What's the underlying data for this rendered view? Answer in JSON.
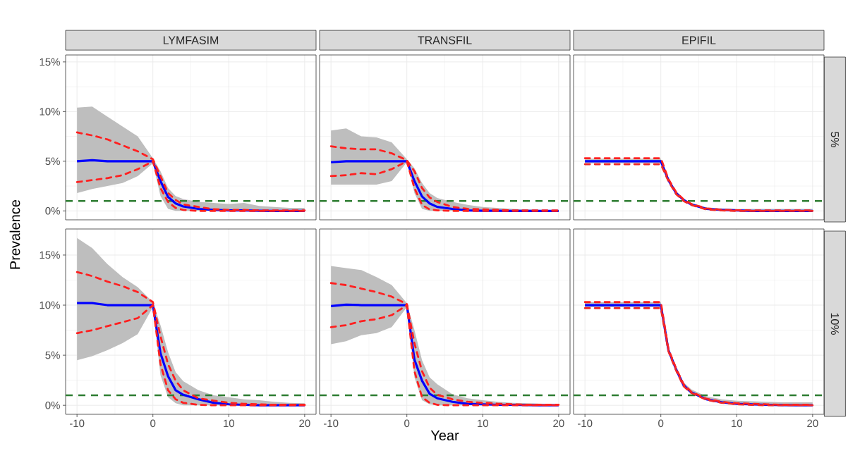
{
  "chart_data": [
    {
      "type": "line",
      "title": "LYMFASIM",
      "x": [
        -10,
        -8,
        -6,
        -4,
        -2,
        0,
        1,
        2,
        3,
        4,
        6,
        8,
        10,
        12,
        14,
        16,
        18,
        20
      ],
      "xlim": [
        -11.5,
        21.5
      ],
      "ylim": [
        -0.9,
        15.7
      ],
      "xticks": [
        -10,
        0,
        10,
        20
      ],
      "yticks": [
        {
          "value": 0,
          "label": "0%"
        },
        {
          "value": 5,
          "label": "5%"
        },
        {
          "value": 10,
          "label": "10%"
        },
        {
          "value": 15,
          "label": "15%"
        }
      ],
      "grid": true,
      "tick_labels": "y",
      "ylabel": "Prevalence",
      "series": [
        {
          "color": "#0000ff",
          "line_style": "solid",
          "values": [
            5.0,
            5.1,
            5.0,
            5.0,
            5.0,
            5.0,
            3.0,
            1.4,
            0.75,
            0.45,
            0.2,
            0.1,
            0.05,
            0.05,
            0.02,
            0,
            0,
            0
          ],
          "lower": [
            1.8,
            2.2,
            2.5,
            2.8,
            3.5,
            4.8,
            1.5,
            0.2,
            0,
            0,
            0,
            0,
            0,
            0,
            0,
            0,
            0,
            0
          ],
          "upper": [
            10.4,
            10.5,
            9.5,
            8.5,
            7.5,
            5.3,
            4.0,
            2.3,
            1.5,
            1.2,
            0.9,
            0.8,
            0.7,
            0.8,
            0.5,
            0.4,
            0.3,
            0.3
          ]
        },
        {
          "color": "#ff2020",
          "line_style": "dashed",
          "values": [
            7.9,
            7.6,
            7.2,
            6.6,
            6.0,
            5.2,
            3.5,
            1.8,
            1.1,
            0.65,
            0.4,
            0.17,
            0.1,
            0.1,
            0.05,
            0.05,
            0.05,
            0.05
          ]
        },
        {
          "color": "#ff2020",
          "line_style": "dashed",
          "values": [
            2.9,
            3.1,
            3.3,
            3.6,
            4.2,
            5.0,
            2.3,
            0.9,
            0.3,
            0.1,
            0,
            0,
            0,
            0,
            0,
            0,
            0,
            0
          ]
        }
      ],
      "ref_lines": [
        {
          "axis": "y",
          "value": 1,
          "color": "#2e7d32",
          "line_style": "dashed"
        }
      ]
    },
    {
      "type": "line",
      "title": "TRANSFIL",
      "x": [
        -10,
        -8,
        -6,
        -4,
        -2,
        0,
        1,
        2,
        3,
        4,
        6,
        8,
        10,
        12,
        14,
        16,
        18,
        20
      ],
      "xlim": [
        -11.5,
        21.5
      ],
      "ylim": [
        -0.9,
        15.7
      ],
      "xticks": [
        -10,
        0,
        10,
        20
      ],
      "yticks": [
        0,
        5,
        10,
        15
      ],
      "grid": true,
      "tick_labels": false,
      "series": [
        {
          "color": "#0000ff",
          "line_style": "solid",
          "values": [
            4.9,
            5.0,
            5.0,
            5.0,
            5.0,
            5.0,
            3.0,
            1.45,
            0.75,
            0.4,
            0.2,
            0.05,
            0.02,
            0.02,
            0,
            0,
            0,
            0
          ],
          "lower": [
            2.65,
            2.65,
            2.65,
            2.65,
            3.0,
            4.9,
            1.8,
            0.2,
            0,
            0,
            0,
            0,
            0,
            0,
            0,
            0,
            0,
            0
          ],
          "upper": [
            8.1,
            8.3,
            7.5,
            7.4,
            6.9,
            5.2,
            4.3,
            2.8,
            1.8,
            1.3,
            0.9,
            0.6,
            0.4,
            0.3,
            0.2,
            0.15,
            0.1,
            0.1
          ]
        },
        {
          "color": "#ff2020",
          "line_style": "dashed",
          "values": [
            6.5,
            6.3,
            6.2,
            6.2,
            5.8,
            5.1,
            4.0,
            2.3,
            1.35,
            0.9,
            0.4,
            0.2,
            0.15,
            0.1,
            0.05,
            0.05,
            0.05,
            0.05
          ]
        },
        {
          "color": "#ff2020",
          "line_style": "dashed",
          "values": [
            3.5,
            3.6,
            3.8,
            3.7,
            4.2,
            5.0,
            2.3,
            0.6,
            0.15,
            0.05,
            0,
            0,
            0,
            0,
            0,
            0,
            0,
            0
          ]
        }
      ],
      "ref_lines": [
        {
          "axis": "y",
          "value": 1,
          "color": "#2e7d32",
          "line_style": "dashed"
        }
      ]
    },
    {
      "type": "line",
      "title": "EPIFIL",
      "y2label": "5%",
      "x": [
        -10,
        -8,
        -6,
        -4,
        -2,
        0,
        1,
        2,
        3,
        4,
        6,
        8,
        10,
        12,
        14,
        16,
        18,
        20
      ],
      "xlim": [
        -11.5,
        21.5
      ],
      "ylim": [
        -0.9,
        15.7
      ],
      "xticks": [
        -10,
        0,
        10,
        20
      ],
      "yticks": [
        0,
        5,
        10,
        15
      ],
      "grid": true,
      "tick_labels": false,
      "series": [
        {
          "color": "#0000ff",
          "line_style": "solid",
          "values": [
            5.0,
            5.0,
            5.0,
            5.0,
            5.0,
            5.0,
            3.1,
            1.8,
            1.1,
            0.65,
            0.2,
            0.1,
            0.05,
            0,
            0,
            0,
            0,
            0
          ],
          "lower": [
            4.8,
            4.8,
            4.8,
            4.8,
            4.8,
            4.8,
            3.0,
            1.7,
            1.0,
            0.6,
            0.15,
            0.05,
            0,
            0,
            0,
            0,
            0,
            0
          ],
          "upper": [
            5.25,
            5.25,
            5.25,
            5.25,
            5.25,
            5.25,
            3.3,
            2.0,
            1.25,
            0.8,
            0.35,
            0.25,
            0.2,
            0.2,
            0.2,
            0.2,
            0.2,
            0.2
          ]
        },
        {
          "color": "#ff2020",
          "line_style": "dashed",
          "values": [
            5.3,
            5.3,
            5.3,
            5.3,
            5.3,
            5.3,
            3.2,
            1.9,
            1.15,
            0.7,
            0.25,
            0.12,
            0.07,
            0.05,
            0.05,
            0.05,
            0.05,
            0.05
          ]
        },
        {
          "color": "#f02828",
          "line_style": "dashed",
          "values": [
            4.7,
            4.7,
            4.7,
            4.7,
            4.7,
            4.7,
            3.0,
            1.7,
            1.0,
            0.6,
            0.15,
            0.05,
            0,
            0,
            0,
            0,
            0,
            0
          ]
        }
      ],
      "ref_lines": [
        {
          "axis": "y",
          "value": 1,
          "color": "#2e7d32",
          "line_style": "dashed"
        }
      ]
    },
    {
      "type": "line",
      "x": [
        -10,
        -8,
        -6,
        -4,
        -2,
        0,
        1,
        2,
        3,
        4,
        6,
        8,
        10,
        12,
        14,
        16,
        18,
        20
      ],
      "xlim": [
        -11.5,
        21.5
      ],
      "ylim": [
        -0.9,
        17.6
      ],
      "xticks": [
        -10,
        0,
        10,
        20
      ],
      "yticks": [
        {
          "value": 0,
          "label": "0%"
        },
        {
          "value": 5,
          "label": "5%"
        },
        {
          "value": 10,
          "label": "10%"
        },
        {
          "value": 15,
          "label": "15%"
        }
      ],
      "grid": true,
      "series": [
        {
          "color": "#0000ff",
          "line_style": "solid",
          "values": [
            10.2,
            10.2,
            10.0,
            10.0,
            10.0,
            10.0,
            5.2,
            2.9,
            1.5,
            1.05,
            0.6,
            0.25,
            0.1,
            0.05,
            0,
            0,
            0,
            0
          ],
          "lower": [
            4.5,
            4.9,
            5.5,
            6.2,
            7.1,
            9.8,
            3.0,
            0.8,
            0.2,
            0,
            0,
            0,
            0,
            0,
            0,
            0,
            0,
            0
          ],
          "upper": [
            16.7,
            15.7,
            14.1,
            12.8,
            11.8,
            10.3,
            8.0,
            5.3,
            3.3,
            2.4,
            1.5,
            1.0,
            0.8,
            0.6,
            0.5,
            0.35,
            0.25,
            0.2
          ]
        },
        {
          "color": "#ff2020",
          "line_style": "dashed",
          "values": [
            13.3,
            12.9,
            12.35,
            11.9,
            11.3,
            10.3,
            6.9,
            4.1,
            2.45,
            1.5,
            0.7,
            0.47,
            0.25,
            0.15,
            0.1,
            0.05,
            0.05,
            0.05
          ]
        },
        {
          "color": "#ff2020",
          "line_style": "dashed",
          "values": [
            7.2,
            7.5,
            7.9,
            8.3,
            8.7,
            10.0,
            4.1,
            1.5,
            0.6,
            0.25,
            0.05,
            0,
            0,
            0,
            0,
            0,
            0,
            0
          ]
        }
      ],
      "ref_lines": [
        {
          "axis": "y",
          "value": 1,
          "color": "#2e7d32",
          "line_style": "dashed"
        }
      ]
    },
    {
      "type": "line",
      "xlabel": "Year",
      "x": [
        -10,
        -8,
        -6,
        -4,
        -2,
        0,
        1,
        2,
        3,
        4,
        6,
        8,
        10,
        12,
        14,
        16,
        18,
        20
      ],
      "xlim": [
        -11.5,
        21.5
      ],
      "ylim": [
        -0.9,
        17.6
      ],
      "xticks": [
        -10,
        0,
        10,
        20
      ],
      "yticks": [
        0,
        5,
        10,
        15
      ],
      "grid": true,
      "tick_labels": "x",
      "series": [
        {
          "color": "#0000ff",
          "line_style": "solid",
          "values": [
            9.9,
            10.05,
            10.0,
            10.0,
            10.0,
            10.0,
            4.55,
            2.45,
            1.15,
            0.7,
            0.35,
            0.15,
            0.1,
            0.05,
            0.05,
            0.02,
            0,
            0
          ],
          "lower": [
            6.1,
            6.4,
            7.0,
            7.2,
            7.8,
            9.8,
            2.8,
            0.5,
            0.1,
            0,
            0,
            0,
            0,
            0,
            0,
            0,
            0,
            0
          ],
          "upper": [
            13.9,
            13.7,
            13.5,
            12.8,
            12.0,
            10.2,
            7.5,
            4.5,
            2.8,
            2.1,
            1.1,
            0.7,
            0.5,
            0.35,
            0.25,
            0.2,
            0.15,
            0.1
          ]
        },
        {
          "color": "#ff2020",
          "line_style": "dashed",
          "values": [
            12.2,
            12.0,
            11.65,
            11.3,
            10.85,
            10.1,
            6.2,
            3.4,
            1.75,
            1.05,
            0.6,
            0.35,
            0.25,
            0.15,
            0.1,
            0.05,
            0.05,
            0.05
          ]
        },
        {
          "color": "#ff2020",
          "line_style": "dashed",
          "values": [
            7.8,
            8.0,
            8.4,
            8.6,
            9.0,
            10.0,
            3.4,
            0.8,
            0.25,
            0.05,
            0,
            0,
            0,
            0,
            0,
            0,
            0,
            0
          ]
        }
      ],
      "ref_lines": [
        {
          "axis": "y",
          "value": 1,
          "color": "#2e7d32",
          "line_style": "dashed"
        }
      ]
    },
    {
      "type": "line",
      "y2label": "10%",
      "x": [
        -10,
        -8,
        -6,
        -4,
        -2,
        0,
        1,
        2,
        3,
        4,
        6,
        8,
        10,
        12,
        14,
        16,
        18,
        20
      ],
      "xlim": [
        -11.5,
        21.5
      ],
      "ylim": [
        -0.9,
        17.6
      ],
      "xticks": [
        -10,
        0,
        10,
        20
      ],
      "yticks": [
        0,
        5,
        10,
        15
      ],
      "grid": true,
      "tick_labels": "x",
      "series": [
        {
          "color": "#0000ff",
          "line_style": "solid",
          "values": [
            10.0,
            10.0,
            10.0,
            10.0,
            10.0,
            10.0,
            5.5,
            3.6,
            2.0,
            1.3,
            0.6,
            0.3,
            0.15,
            0.1,
            0.05,
            0.02,
            0,
            0
          ],
          "lower": [
            9.8,
            9.8,
            9.8,
            9.8,
            9.8,
            9.8,
            5.3,
            3.4,
            1.8,
            1.15,
            0.5,
            0.2,
            0.1,
            0,
            0,
            0,
            0,
            0
          ],
          "upper": [
            10.3,
            10.3,
            10.3,
            10.3,
            10.3,
            10.3,
            5.8,
            3.9,
            2.3,
            1.6,
            0.9,
            0.6,
            0.45,
            0.4,
            0.35,
            0.3,
            0.3,
            0.3
          ]
        },
        {
          "color": "#ff2020",
          "line_style": "dashed",
          "values": [
            10.3,
            10.3,
            10.3,
            10.3,
            10.3,
            10.3,
            5.6,
            3.7,
            2.1,
            1.35,
            0.65,
            0.35,
            0.2,
            0.15,
            0.1,
            0.05,
            0.05,
            0.05
          ]
        },
        {
          "color": "#f02828",
          "line_style": "dashed",
          "values": [
            9.7,
            9.7,
            9.7,
            9.7,
            9.7,
            9.7,
            5.4,
            3.5,
            1.9,
            1.25,
            0.55,
            0.25,
            0.1,
            0.05,
            0,
            0,
            0,
            0
          ]
        }
      ],
      "ref_lines": [
        {
          "axis": "y",
          "value": 1,
          "color": "#2e7d32",
          "line_style": "dashed"
        }
      ]
    }
  ]
}
